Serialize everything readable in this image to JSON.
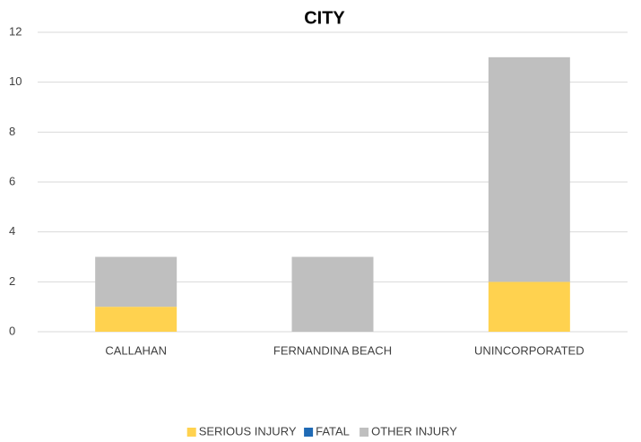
{
  "chart_data": {
    "type": "bar",
    "stacked": true,
    "title": "CITY",
    "categories": [
      "CALLAHAN",
      "FERNANDINA BEACH",
      "UNINCORPORATED"
    ],
    "series": [
      {
        "name": "SERIOUS INJURY",
        "color": "#ffd24f",
        "values": [
          1,
          0,
          2
        ]
      },
      {
        "name": "FATAL",
        "color": "#1f6ab5",
        "values": [
          0,
          0,
          0
        ]
      },
      {
        "name": "OTHER INJURY",
        "color": "#bfbfbf",
        "values": [
          2,
          3,
          9
        ]
      }
    ],
    "ylim": [
      0,
      12
    ],
    "yticks": [
      0,
      2,
      4,
      6,
      8,
      10,
      12
    ],
    "grid": true,
    "legend": "bottom"
  }
}
